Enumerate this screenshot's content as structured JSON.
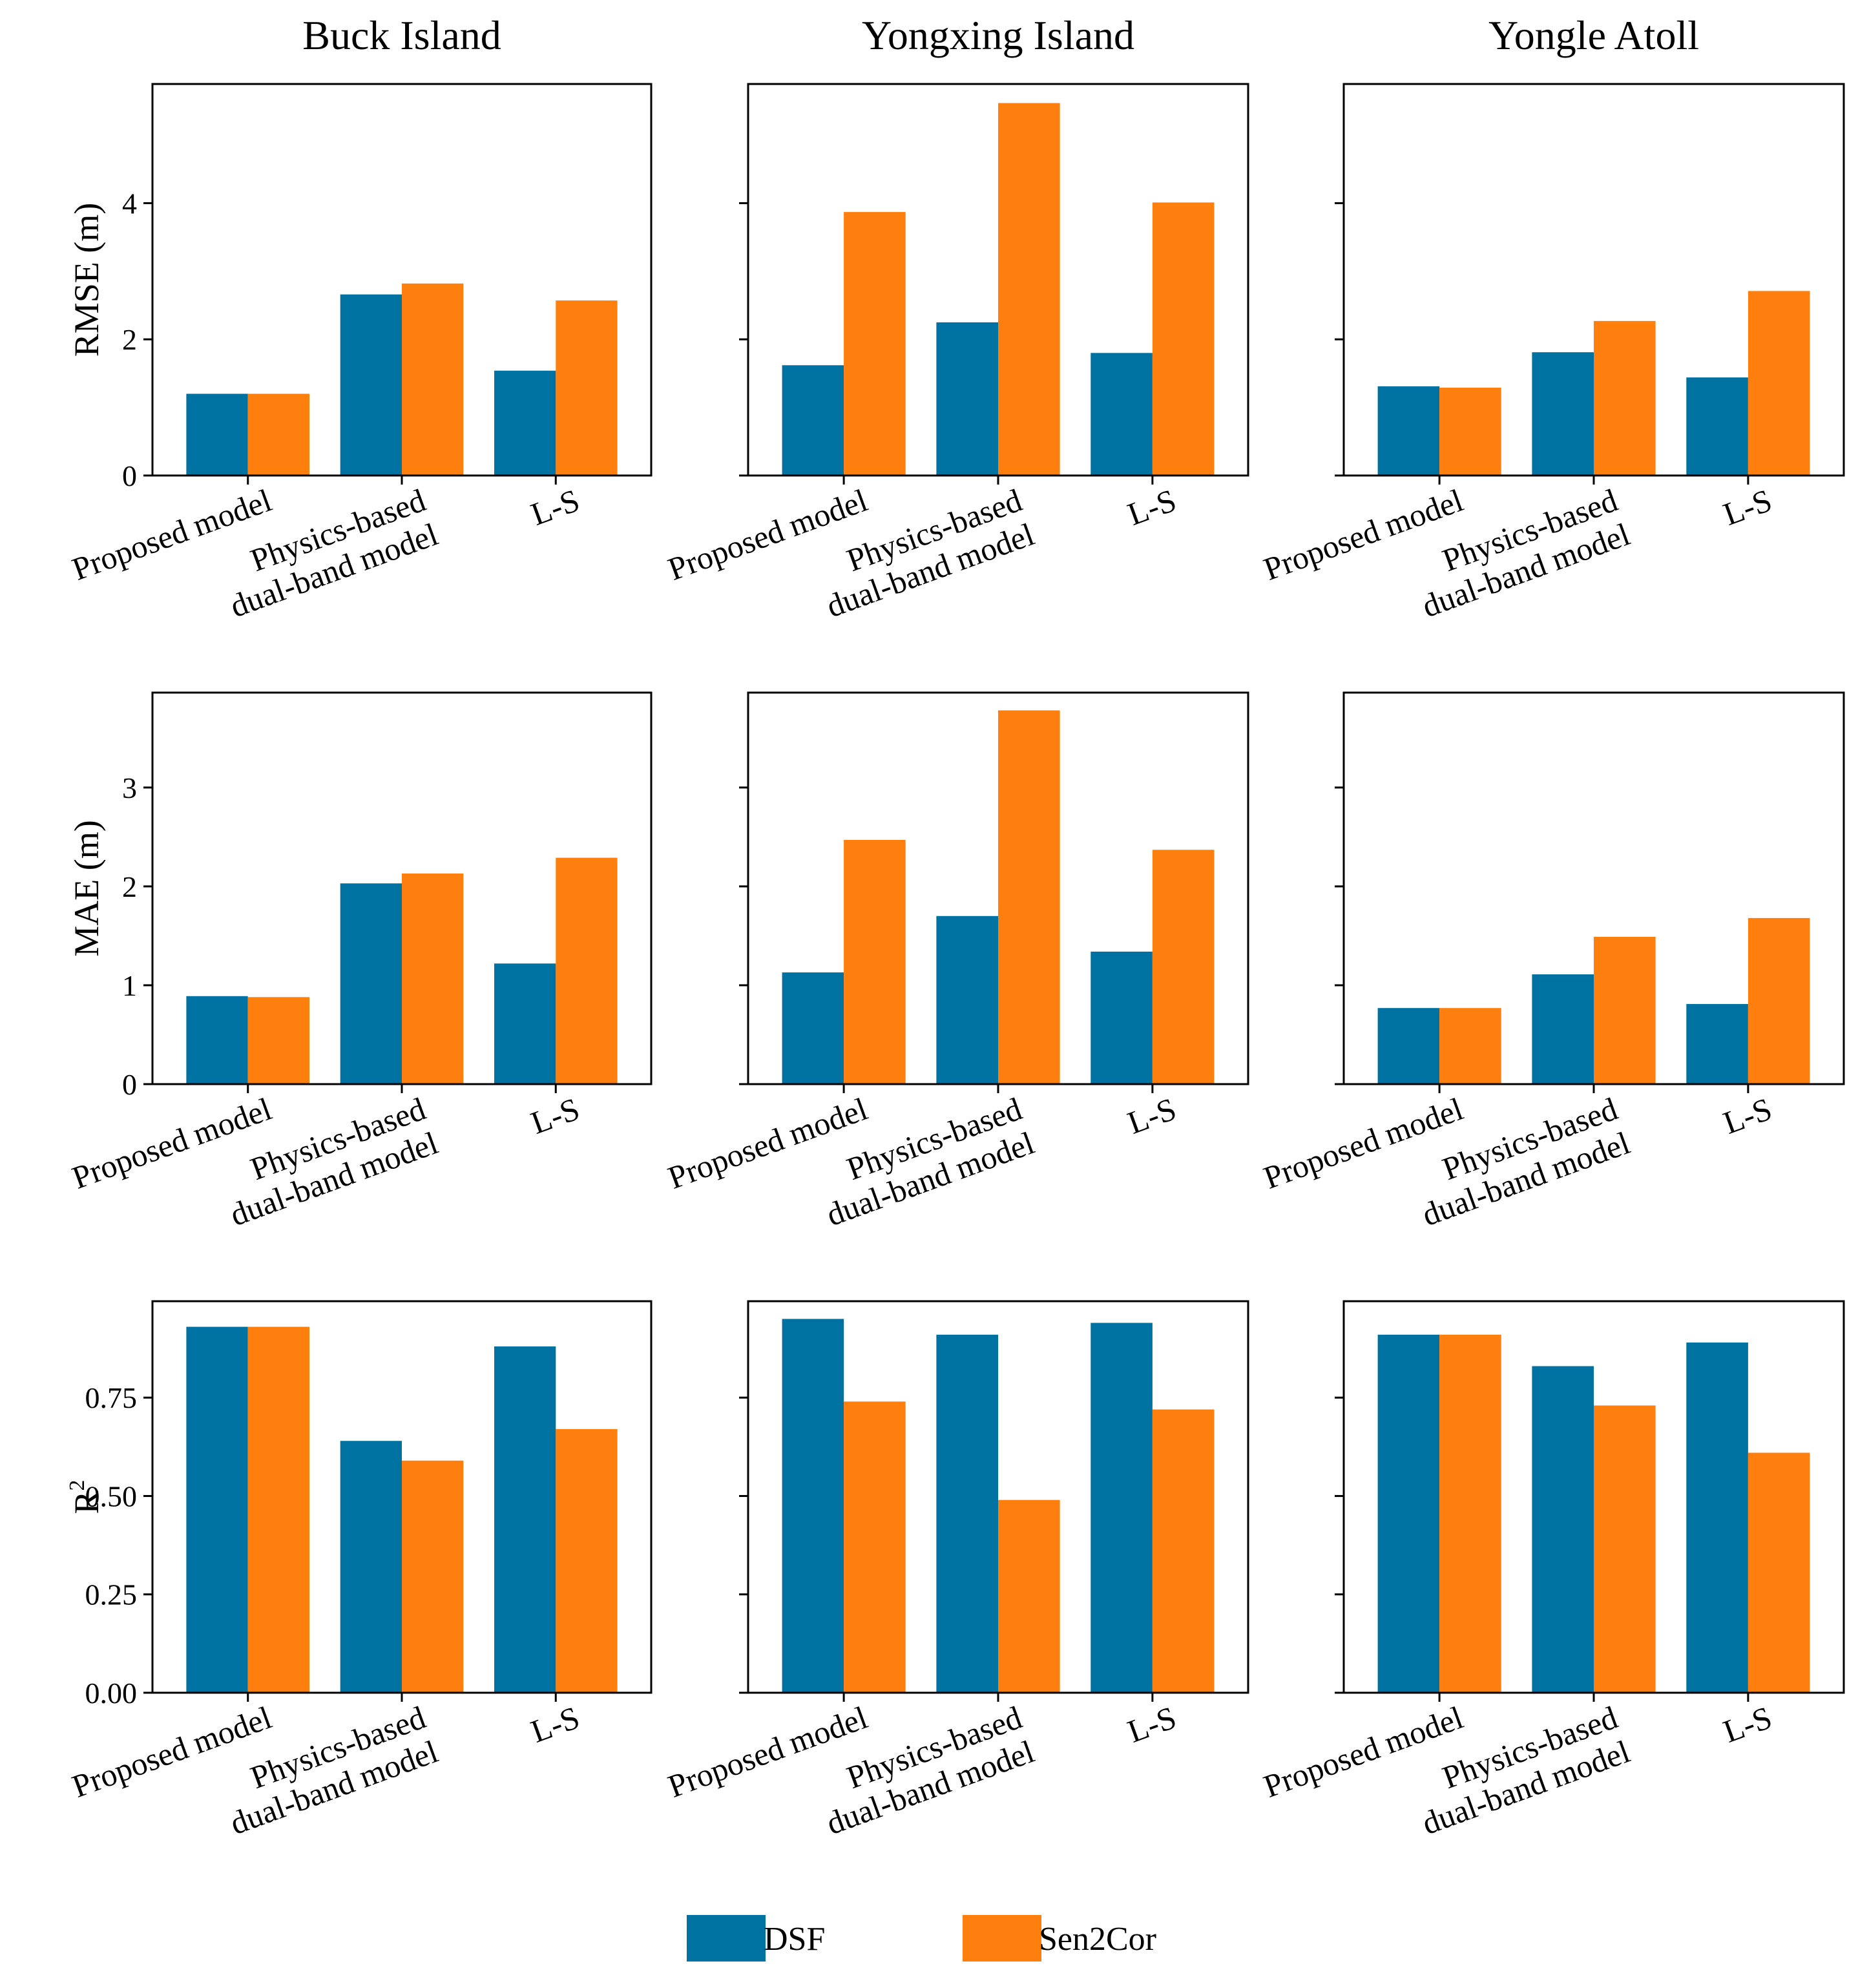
{
  "chart_data": {
    "type": "bar",
    "columns": [
      "Buck Island",
      "Yongxing Island",
      "Yongle Atoll"
    ],
    "categories": [
      [
        "Proposed model"
      ],
      [
        "Physics-based",
        "dual-band model"
      ],
      [
        "L-S"
      ]
    ],
    "legend": [
      {
        "name": "DSF",
        "color": "#0072a2"
      },
      {
        "name": "Sen2Cor",
        "color": "#ff7f0e"
      }
    ],
    "rows": [
      {
        "metric": "RMSE (m)",
        "ylabel_main": "RMSE (m)",
        "ylabel_sup": "",
        "ylim": [
          0,
          5.75
        ],
        "ticks": [
          0,
          2,
          4
        ],
        "tick_labels": [
          "0",
          "2",
          "4"
        ],
        "panels": [
          {
            "title": "Buck Island",
            "series": [
              {
                "name": "DSF",
                "values": [
                  1.2,
                  2.66,
                  1.54
                ]
              },
              {
                "name": "Sen2Cor",
                "values": [
                  1.2,
                  2.82,
                  2.57
                ]
              }
            ]
          },
          {
            "title": "Yongxing Island",
            "series": [
              {
                "name": "DSF",
                "values": [
                  1.62,
                  2.25,
                  1.8
                ]
              },
              {
                "name": "Sen2Cor",
                "values": [
                  3.87,
                  5.47,
                  4.01
                ]
              }
            ]
          },
          {
            "title": "Yongle Atoll",
            "series": [
              {
                "name": "DSF",
                "values": [
                  1.31,
                  1.81,
                  1.44
                ]
              },
              {
                "name": "Sen2Cor",
                "values": [
                  1.29,
                  2.27,
                  2.71
                ]
              }
            ]
          }
        ]
      },
      {
        "metric": "MAE (m)",
        "ylabel_main": "MAE (m)",
        "ylabel_sup": "",
        "ylim": [
          0,
          3.96
        ],
        "ticks": [
          0,
          1,
          2,
          3
        ],
        "tick_labels": [
          "0",
          "1",
          "2",
          "3"
        ],
        "panels": [
          {
            "title": "Buck Island",
            "series": [
              {
                "name": "DSF",
                "values": [
                  0.89,
                  2.03,
                  1.22
                ]
              },
              {
                "name": "Sen2Cor",
                "values": [
                  0.88,
                  2.13,
                  2.29
                ]
              }
            ]
          },
          {
            "title": "Yongxing Island",
            "series": [
              {
                "name": "DSF",
                "values": [
                  1.13,
                  1.7,
                  1.34
                ]
              },
              {
                "name": "Sen2Cor",
                "values": [
                  2.47,
                  3.78,
                  2.37
                ]
              }
            ]
          },
          {
            "title": "Yongle Atoll",
            "series": [
              {
                "name": "DSF",
                "values": [
                  0.77,
                  1.11,
                  0.81
                ]
              },
              {
                "name": "Sen2Cor",
                "values": [
                  0.77,
                  1.49,
                  1.68
                ]
              }
            ]
          }
        ]
      },
      {
        "metric": "R2",
        "ylabel_main": "R",
        "ylabel_sup": "2",
        "ylim": [
          0,
          0.995
        ],
        "ticks": [
          0,
          0.25,
          0.5,
          0.75
        ],
        "tick_labels": [
          "0.00",
          "0.25",
          "0.50",
          "0.75"
        ],
        "panels": [
          {
            "title": "Buck Island",
            "series": [
              {
                "name": "DSF",
                "values": [
                  0.93,
                  0.64,
                  0.88
                ]
              },
              {
                "name": "Sen2Cor",
                "values": [
                  0.93,
                  0.59,
                  0.67
                ]
              }
            ]
          },
          {
            "title": "Yongxing Island",
            "series": [
              {
                "name": "DSF",
                "values": [
                  0.95,
                  0.91,
                  0.94
                ]
              },
              {
                "name": "Sen2Cor",
                "values": [
                  0.74,
                  0.49,
                  0.72
                ]
              }
            ]
          },
          {
            "title": "Yongle Atoll",
            "series": [
              {
                "name": "DSF",
                "values": [
                  0.91,
                  0.83,
                  0.89
                ]
              },
              {
                "name": "Sen2Cor",
                "values": [
                  0.91,
                  0.73,
                  0.61
                ]
              }
            ]
          }
        ]
      }
    ]
  }
}
